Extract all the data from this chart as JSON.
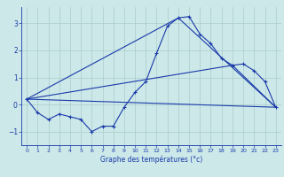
{
  "xlabel": "Graphe des températures (°c)",
  "background_color": "#cce8e8",
  "grid_color": "#aacccc",
  "line_color": "#1a3aaa",
  "x_ticks": [
    0,
    1,
    2,
    3,
    4,
    5,
    6,
    7,
    8,
    9,
    10,
    11,
    12,
    13,
    14,
    15,
    16,
    17,
    18,
    19,
    20,
    21,
    22,
    23
  ],
  "ylim": [
    -1.5,
    3.6
  ],
  "xlim": [
    -0.5,
    23.5
  ],
  "yticks": [
    -1,
    0,
    1,
    2,
    3
  ],
  "series1": {
    "x": [
      0,
      1,
      2,
      3,
      4,
      5,
      6,
      7,
      8,
      9,
      10,
      11,
      12,
      13,
      14,
      15,
      16,
      17,
      18,
      19,
      20,
      21,
      22,
      23
    ],
    "y": [
      0.2,
      -0.3,
      -0.55,
      -0.35,
      -0.45,
      -0.55,
      -1.0,
      -0.8,
      -0.8,
      -0.1,
      0.45,
      0.85,
      1.9,
      2.9,
      3.2,
      3.25,
      2.6,
      2.25,
      1.7,
      1.45,
      1.5,
      1.25,
      0.85,
      -0.1
    ]
  },
  "series2": {
    "x": [
      0,
      23
    ],
    "y": [
      0.2,
      -0.1
    ]
  },
  "series3": {
    "x": [
      0,
      14,
      23
    ],
    "y": [
      0.2,
      3.2,
      -0.1
    ]
  },
  "series4": {
    "x": [
      0,
      19,
      23
    ],
    "y": [
      0.2,
      1.45,
      -0.1
    ]
  }
}
